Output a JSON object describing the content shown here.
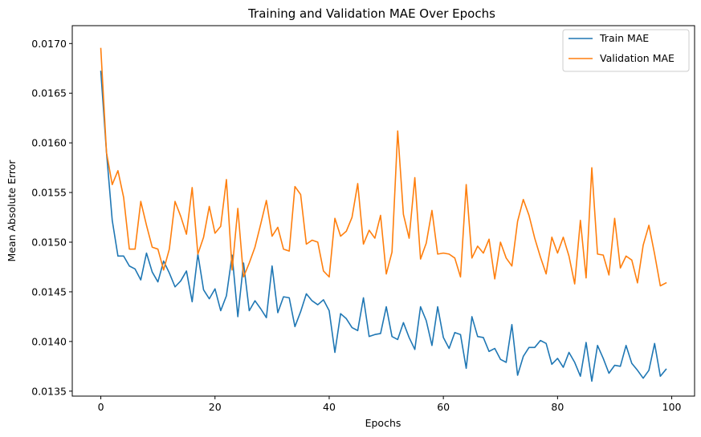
{
  "chart_data": {
    "type": "line",
    "title": "Training and Validation MAE Over Epochs",
    "xlabel": "Epochs",
    "ylabel": "Mean Absolute Error",
    "xlim": [
      -5,
      104
    ],
    "ylim": [
      0.01345,
      0.01718
    ],
    "xticks": [
      0,
      20,
      40,
      60,
      80,
      100
    ],
    "xtick_labels": [
      "0",
      "20",
      "40",
      "60",
      "80",
      "100"
    ],
    "yticks": [
      0.0135,
      0.014,
      0.0145,
      0.015,
      0.0155,
      0.016,
      0.0165,
      0.017
    ],
    "ytick_labels": [
      "0.0135",
      "0.0140",
      "0.0145",
      "0.0150",
      "0.0155",
      "0.0160",
      "0.0165",
      "0.0170"
    ],
    "grid": false,
    "legend_position": "top-right",
    "x": [
      0,
      1,
      2,
      3,
      4,
      5,
      6,
      7,
      8,
      9,
      10,
      11,
      12,
      13,
      14,
      15,
      16,
      17,
      18,
      19,
      20,
      21,
      22,
      23,
      24,
      25,
      26,
      27,
      28,
      29,
      30,
      31,
      32,
      33,
      34,
      35,
      36,
      37,
      38,
      39,
      40,
      41,
      42,
      43,
      44,
      45,
      46,
      47,
      48,
      49,
      50,
      51,
      52,
      53,
      54,
      55,
      56,
      57,
      58,
      59,
      60,
      61,
      62,
      63,
      64,
      65,
      66,
      67,
      68,
      69,
      70,
      71,
      72,
      73,
      74,
      75,
      76,
      77,
      78,
      79,
      80,
      81,
      82,
      83,
      84,
      85,
      86,
      87,
      88,
      89,
      90,
      91,
      92,
      93,
      94,
      95,
      96,
      97,
      98,
      99
    ],
    "series": [
      {
        "name": "Train MAE",
        "color": "#1f77b4",
        "values": [
          0.01672,
          0.0159,
          0.01522,
          0.01486,
          0.01486,
          0.01476,
          0.01473,
          0.01462,
          0.01489,
          0.0147,
          0.0146,
          0.01481,
          0.01469,
          0.01455,
          0.01461,
          0.01471,
          0.0144,
          0.01488,
          0.01452,
          0.01443,
          0.01453,
          0.01431,
          0.01446,
          0.01487,
          0.01425,
          0.01479,
          0.01431,
          0.01441,
          0.01433,
          0.01424,
          0.01476,
          0.01429,
          0.01445,
          0.01444,
          0.01415,
          0.0143,
          0.01448,
          0.01441,
          0.01437,
          0.01442,
          0.01431,
          0.01389,
          0.01428,
          0.01423,
          0.01414,
          0.01411,
          0.01444,
          0.01405,
          0.01407,
          0.01408,
          0.01435,
          0.01405,
          0.01402,
          0.01419,
          0.01404,
          0.01392,
          0.01435,
          0.01421,
          0.01396,
          0.01435,
          0.01404,
          0.01393,
          0.01409,
          0.01407,
          0.01373,
          0.01425,
          0.01405,
          0.01404,
          0.0139,
          0.01393,
          0.01382,
          0.01379,
          0.01417,
          0.01366,
          0.01385,
          0.01394,
          0.01394,
          0.01401,
          0.01398,
          0.01377,
          0.01383,
          0.01374,
          0.01389,
          0.01379,
          0.01365,
          0.01399,
          0.0136,
          0.01396,
          0.01383,
          0.01368,
          0.01376,
          0.01375,
          0.01396,
          0.01378,
          0.01371,
          0.01363,
          0.01371,
          0.01398,
          0.01365,
          0.01372
        ]
      },
      {
        "name": "Validation MAE",
        "color": "#ff7f0e",
        "values": [
          0.01695,
          0.0159,
          0.01558,
          0.01572,
          0.01545,
          0.01493,
          0.01493,
          0.01541,
          0.01517,
          0.01495,
          0.01493,
          0.01472,
          0.01493,
          0.01541,
          0.01526,
          0.01508,
          0.01555,
          0.01488,
          0.01505,
          0.01536,
          0.01509,
          0.01516,
          0.01563,
          0.01472,
          0.01534,
          0.01465,
          0.01479,
          0.01495,
          0.01518,
          0.01542,
          0.01506,
          0.01515,
          0.01493,
          0.01491,
          0.01556,
          0.01548,
          0.01498,
          0.01502,
          0.015,
          0.01471,
          0.01465,
          0.01524,
          0.01506,
          0.01511,
          0.01525,
          0.01559,
          0.01498,
          0.01512,
          0.01504,
          0.01527,
          0.01468,
          0.0149,
          0.01612,
          0.01528,
          0.01504,
          0.01565,
          0.01483,
          0.01499,
          0.01532,
          0.01488,
          0.01489,
          0.01488,
          0.01484,
          0.01465,
          0.01558,
          0.01484,
          0.01496,
          0.01489,
          0.01503,
          0.01463,
          0.015,
          0.01484,
          0.01476,
          0.01521,
          0.01543,
          0.01527,
          0.01504,
          0.01485,
          0.01468,
          0.01505,
          0.01489,
          0.01505,
          0.01486,
          0.01458,
          0.01522,
          0.01464,
          0.01575,
          0.01488,
          0.01487,
          0.01467,
          0.01524,
          0.01474,
          0.01486,
          0.01482,
          0.01459,
          0.01497,
          0.01517,
          0.01488,
          0.01456,
          0.01459
        ]
      }
    ]
  }
}
